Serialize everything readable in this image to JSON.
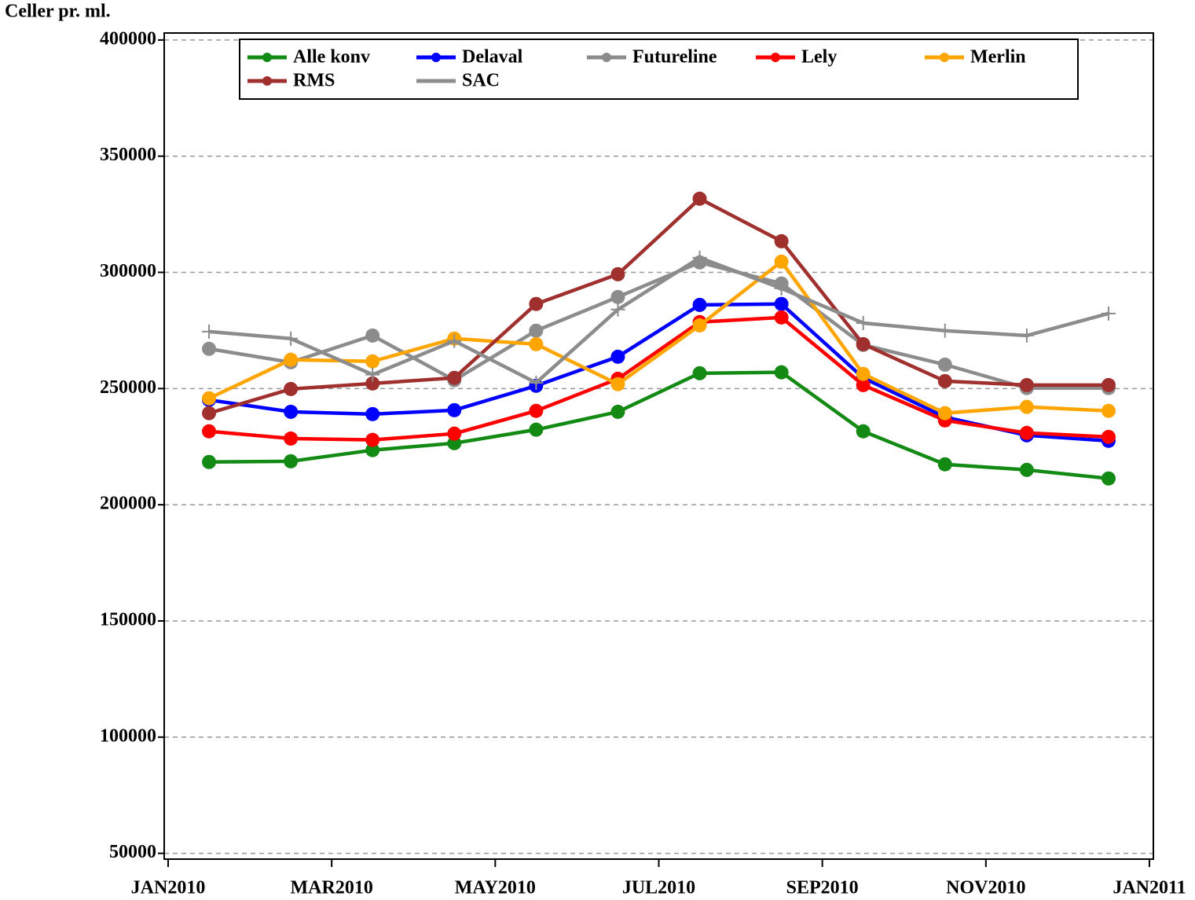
{
  "chart_data": {
    "type": "line",
    "y_label": "Celler pr. ml.",
    "x": [
      "2010-01",
      "2010-02",
      "2010-03",
      "2010-04",
      "2010-05",
      "2010-06",
      "2010-07",
      "2010-08",
      "2010-09",
      "2010-10",
      "2010-11",
      "2010-12"
    ],
    "xlim": [
      "2010-01",
      "2011-01"
    ],
    "xticks": [
      {
        "value": "2010-01",
        "label": "JAN2010"
      },
      {
        "value": "2010-03",
        "label": "MAR2010"
      },
      {
        "value": "2010-05",
        "label": "MAY2010"
      },
      {
        "value": "2010-07",
        "label": "JUL2010"
      },
      {
        "value": "2010-09",
        "label": "SEP2010"
      },
      {
        "value": "2010-11",
        "label": "NOV2010"
      },
      {
        "value": "2011-01",
        "label": "JAN2011"
      }
    ],
    "ylim": [
      47500,
      403000
    ],
    "yticks": [
      50000,
      100000,
      150000,
      200000,
      250000,
      300000,
      350000,
      400000
    ],
    "grid": true,
    "series": [
      {
        "name": "Alle konv",
        "color": "#138a13",
        "marker": "circle",
        "values": [
          218400,
          218700,
          223500,
          226500,
          232300,
          240000,
          256600,
          257000,
          231600,
          217400,
          215000,
          211300
        ]
      },
      {
        "name": "Delaval",
        "color": "#0000ff",
        "marker": "circle",
        "values": [
          245100,
          240000,
          239000,
          240700,
          251200,
          263700,
          286000,
          286400,
          254600,
          237700,
          229900,
          227500
        ]
      },
      {
        "name": "Futureline",
        "color": "#8c8c8c",
        "marker": "circle",
        "values": [
          267100,
          261300,
          272800,
          253600,
          274900,
          289400,
          304300,
          295200,
          268800,
          260300,
          250200,
          250200
        ]
      },
      {
        "name": "Lely",
        "color": "#ff0000",
        "marker": "circle",
        "values": [
          231600,
          228500,
          227900,
          230600,
          240400,
          254200,
          278600,
          280600,
          251500,
          236300,
          230900,
          229200
        ]
      },
      {
        "name": "Merlin",
        "color": "#ffa500",
        "marker": "circle",
        "values": [
          245800,
          262400,
          261700,
          271500,
          269100,
          251900,
          277200,
          304600,
          256300,
          239400,
          242100,
          240400
        ]
      },
      {
        "name": "RMS",
        "color": "#a0302e",
        "marker": "circle",
        "values": [
          239400,
          249800,
          252200,
          254600,
          286400,
          299200,
          331700,
          313400,
          269100,
          253200,
          251500,
          251500
        ]
      },
      {
        "name": "SAC",
        "color": "#8c8c8c",
        "marker": "plus",
        "values": [
          274500,
          271500,
          256000,
          270500,
          252500,
          284000,
          306300,
          293100,
          278200,
          274900,
          272800,
          282300
        ]
      }
    ]
  }
}
